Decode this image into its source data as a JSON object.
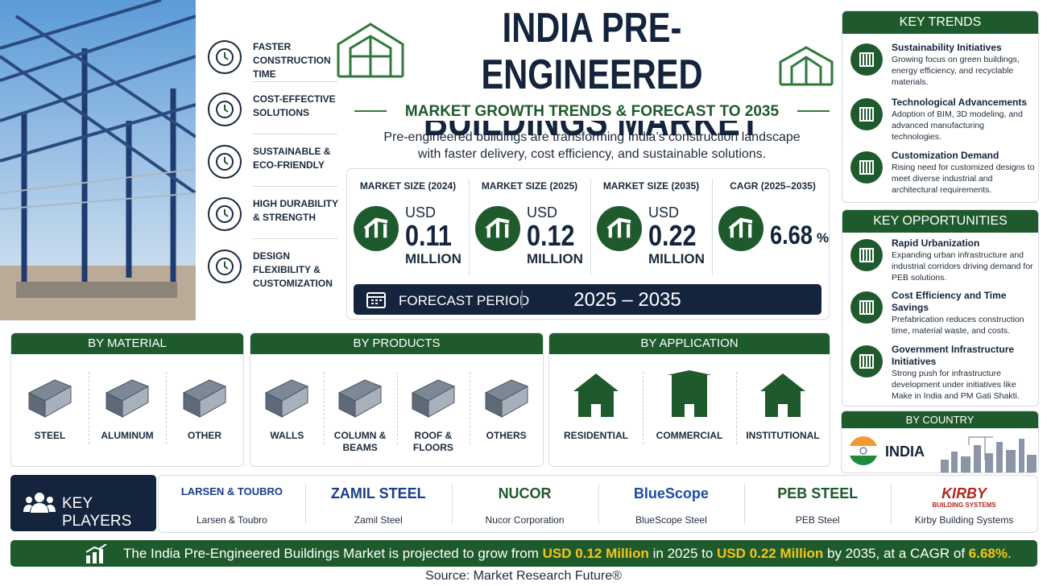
{
  "header": {
    "title_line1": "INDIA PRE-ENGINEERED",
    "title_line2": "BUILDINGS MARKET",
    "subtitle": "MARKET GROWTH TRENDS & FORECAST TO 2035",
    "description_line1": "Pre-engineered buildings are transforming India’s construction landscape",
    "description_line2": "with faster delivery, cost efficiency, and sustainable solutions."
  },
  "benefits": [
    "FASTER CONSTRUCTION TIME",
    "COST-EFFECTIVE SOLUTIONS",
    "SUSTAINABLE & ECO-FRIENDLY",
    "HIGH DURABILITY & STRENGTH",
    "DESIGN FLEXIBILITY & CUSTOMIZATION"
  ],
  "stats": [
    {
      "label": "MARKET SIZE (2024)",
      "prefix": "USD",
      "value": "0.11",
      "unit": "MILLION"
    },
    {
      "label": "MARKET SIZE (2025)",
      "prefix": "USD",
      "value": "0.12",
      "unit": "MILLION"
    },
    {
      "label": "MARKET SIZE (2035)",
      "prefix": "USD",
      "value": "0.22",
      "unit": "MILLION"
    },
    {
      "label": "CAGR (2025–2035)",
      "value": "6.68",
      "unit": "%"
    }
  ],
  "forecast": {
    "label": "FORECAST PERIOD",
    "value": "2025 – 2035"
  },
  "segments": [
    {
      "title": "BY MATERIAL",
      "items": [
        "STEEL",
        "ALUMINUM",
        "OTHER"
      ]
    },
    {
      "title": "BY PRODUCTS",
      "items": [
        "WALLS",
        "COLUMN & BEAMS",
        "ROOF & FLOORS",
        "OTHERS"
      ]
    },
    {
      "title": "BY APPLICATION",
      "items": [
        "RESIDENTIAL",
        "COMMERCIAL",
        "INSTITUTIONAL"
      ]
    }
  ],
  "by_country": {
    "title": "BY COUNTRY",
    "country": "INDIA"
  },
  "key_trends": {
    "title": "KEY TRENDS",
    "items": [
      {
        "title": "Sustainability Initiatives",
        "text": "Growing focus on green buildings, energy efficiency, and recyclable materials."
      },
      {
        "title": "Technological Advancements",
        "text": "Adoption of BIM, 3D modeling, and advanced manufacturing technologies."
      },
      {
        "title": "Customization Demand",
        "text": "Rising need for customized designs to meet diverse industrial and architectural requirements."
      }
    ]
  },
  "key_opportunities": {
    "title": "KEY OPPORTUNITIES",
    "items": [
      {
        "title": "Rapid Urbanization",
        "text": "Expanding urban infrastructure and industrial corridors driving demand for PEB solutions."
      },
      {
        "title": "Cost Efficiency and Time Savings",
        "text": "Prefabrication reduces construction time, material waste, and costs."
      },
      {
        "title": "Government Infrastructure Initiatives",
        "text": "Strong push for infrastructure development under initiatives like Make in India and PM Gati Shakti."
      }
    ]
  },
  "key_players": {
    "title": "KEY PLAYERS",
    "players": [
      {
        "logo": "LARSEN & TOUBRO",
        "name": "Larsen & Toubro"
      },
      {
        "logo": "ZAMIL STEEL",
        "name": "Zamil Steel"
      },
      {
        "logo": "NUCOR",
        "name": "Nucor Corporation"
      },
      {
        "logo": "BlueScope",
        "name": "BlueScope Steel"
      },
      {
        "logo": "PEB STEEL",
        "name": "PEB Steel"
      },
      {
        "logo": "KIRBY",
        "logo_sub": "BUILDING SYSTEMS",
        "name": "Kirby Building Systems"
      }
    ]
  },
  "footer": {
    "summary": [
      "The India Pre-Engineered Buildings Market is projected to grow from ",
      "USD 0.12 Million",
      " in 2025 to ",
      "USD 0.22 Million",
      " by 2035, at a CAGR of ",
      "6.68%",
      "."
    ],
    "source": "Source: Market Research Future®"
  }
}
